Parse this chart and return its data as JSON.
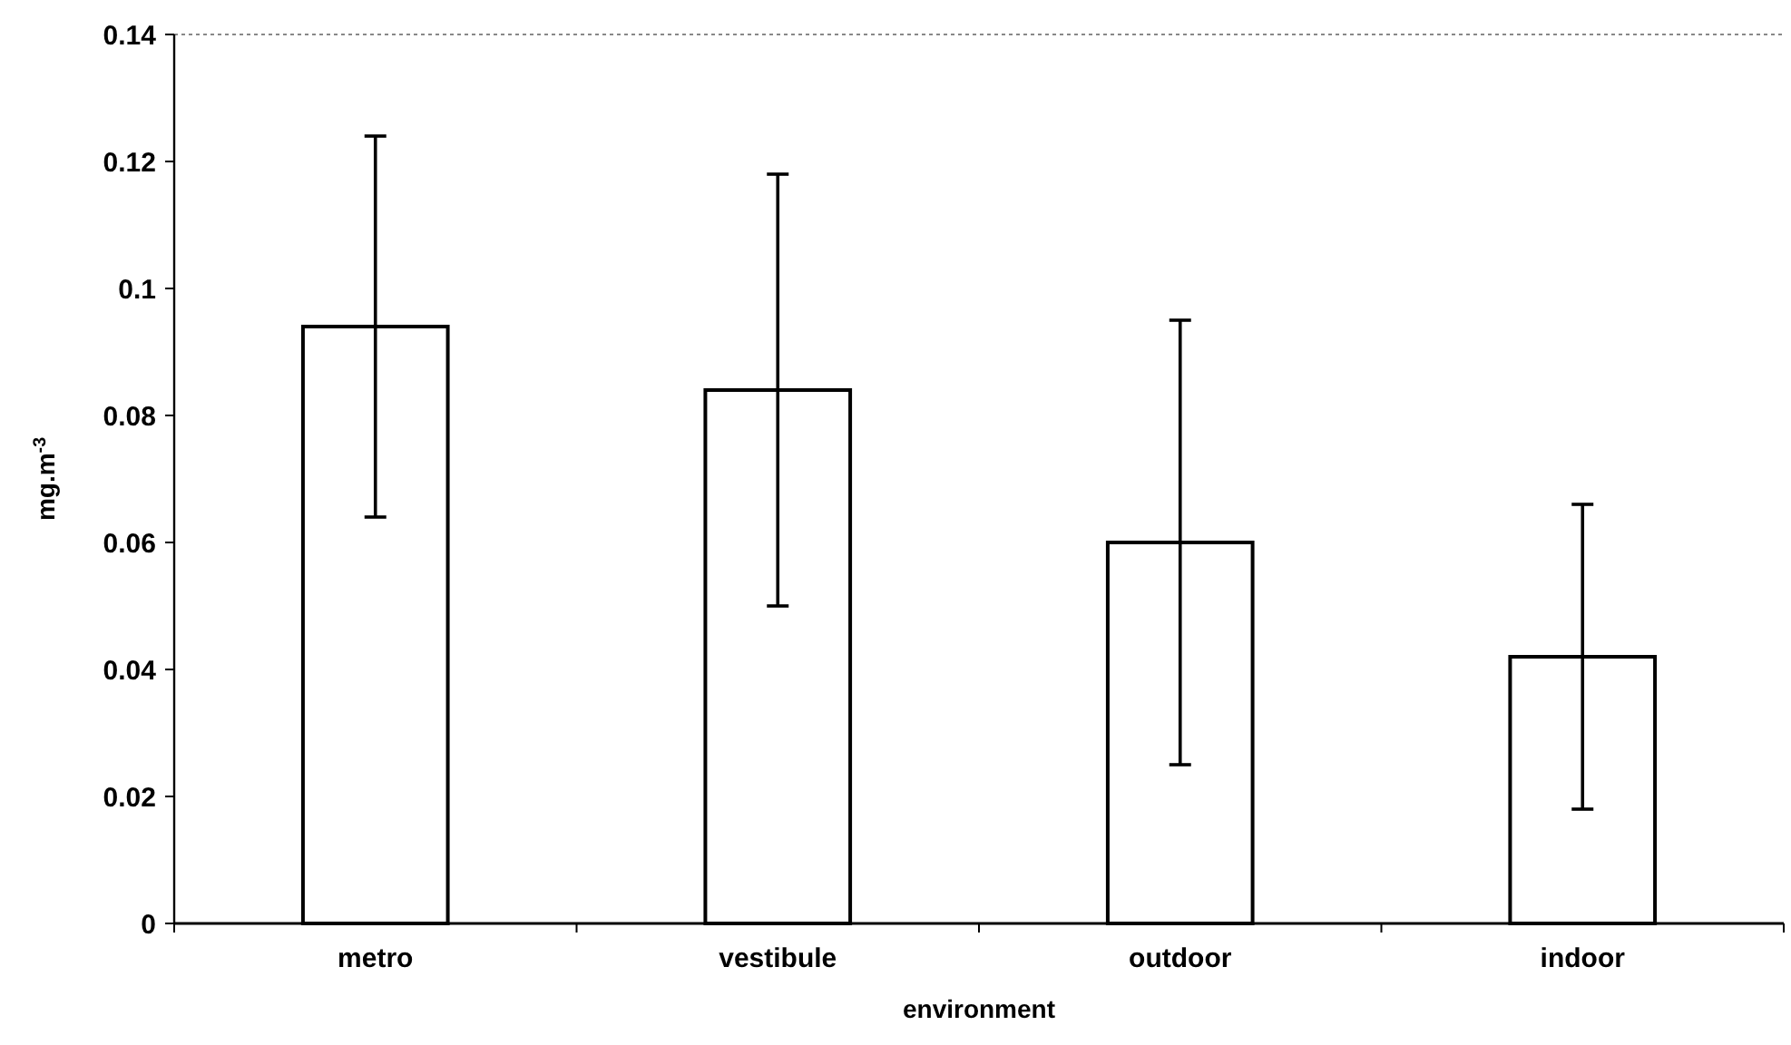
{
  "chart_data": {
    "type": "bar",
    "xlabel": "environment",
    "ylabel": "mg.m$^{-3}$",
    "categories": [
      "metro",
      "vestibule",
      "outdoor",
      "indoor"
    ],
    "values": [
      0.094,
      0.084,
      0.06,
      0.042
    ],
    "errors": [
      0.03,
      0.034,
      0.035,
      0.024
    ],
    "color": "#ffffff",
    "ylim": [
      0,
      0.14
    ],
    "yticks": [
      {
        "value": 0,
        "label": "0"
      },
      {
        "value": 0.02,
        "label": "0.02"
      },
      {
        "value": 0.04,
        "label": "0.04"
      },
      {
        "value": 0.06,
        "label": "0.06"
      },
      {
        "value": 0.08,
        "label": "0.08"
      },
      {
        "value": 0.1,
        "label": "0.1"
      },
      {
        "value": 0.12,
        "label": "0.12"
      },
      {
        "value": 0.14,
        "label": "0.14"
      }
    ],
    "grid": false
  }
}
